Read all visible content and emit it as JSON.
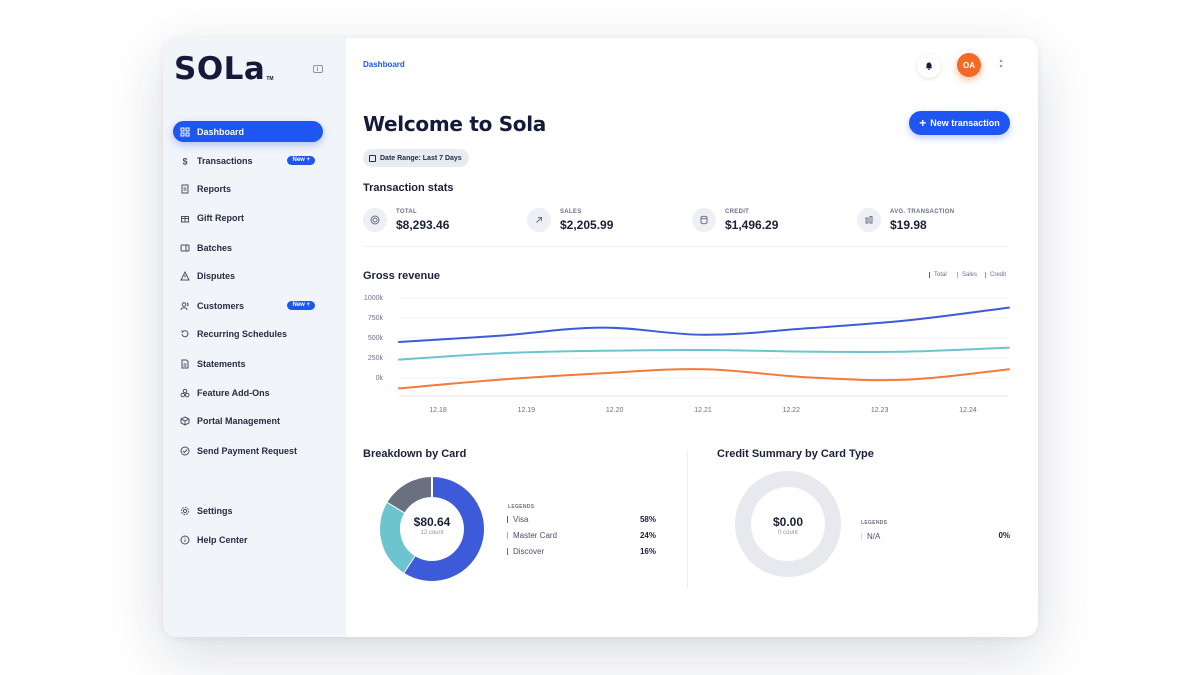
{
  "app": {
    "logo": "SOLa",
    "logo_tm": "TM"
  },
  "sidebar": {
    "items": [
      {
        "label": "Dashboard",
        "icon": "grid-icon",
        "active": true
      },
      {
        "label": "Transactions",
        "icon": "dollar-icon",
        "badge": "New +"
      },
      {
        "label": "Reports",
        "icon": "report-icon"
      },
      {
        "label": "Gift Report",
        "icon": "gift-icon"
      },
      {
        "label": "Batches",
        "icon": "batch-icon"
      },
      {
        "label": "Disputes",
        "icon": "warning-icon"
      },
      {
        "label": "Customers",
        "icon": "users-icon",
        "badge": "New +"
      },
      {
        "label": "Recurring Schedules",
        "icon": "recurring-icon"
      },
      {
        "label": "Statements",
        "icon": "statement-icon"
      },
      {
        "label": "Feature Add-Ons",
        "icon": "addons-icon"
      },
      {
        "label": "Portal Management",
        "icon": "portal-icon"
      },
      {
        "label": "Send Payment Request",
        "icon": "send-icon"
      }
    ],
    "bottom": [
      {
        "label": "Settings",
        "icon": "gear-icon"
      },
      {
        "label": "Help Center",
        "icon": "help-icon"
      }
    ]
  },
  "header": {
    "breadcrumb": "Dashboard",
    "avatar_initials": "OA"
  },
  "main": {
    "title": "Welcome to Sola",
    "new_transaction": "New transaction",
    "date_range": "Date Range: Last 7 Days",
    "stats_title": "Transaction stats",
    "stats": [
      {
        "label": "TOTAL",
        "value": "$8,293.46",
        "icon": "target-icon"
      },
      {
        "label": "SALES",
        "value": "$2,205.99",
        "icon": "arrow-up-right-icon"
      },
      {
        "label": "CREDIT",
        "value": "$1,496.29",
        "icon": "database-icon"
      },
      {
        "label": "AVG. TRANSACTION",
        "value": "$19.98",
        "icon": "bars-icon"
      }
    ],
    "revenue_title": "Gross revenue",
    "breakdown_title": "Breakdown by Card",
    "credit_title": "Credit Summary by Card Type"
  },
  "colors": {
    "accent": "#1f55f0",
    "total": "#3d5bd9",
    "sales": "#6cc4cf",
    "credit": "#f27a3a",
    "discover": "#6b7080",
    "avatar": "#f36a24"
  },
  "chart_data": [
    {
      "type": "line",
      "title": "Gross revenue",
      "categories": [
        "12.18",
        "12.19",
        "12.20",
        "12.21",
        "12.22",
        "12.23",
        "12.24"
      ],
      "yticks": [
        "1000k",
        "750k",
        "500k",
        "250k",
        "0k"
      ],
      "ylim": [
        -150,
        1000
      ],
      "series": [
        {
          "name": "Total",
          "color": "#3d5bd9",
          "values": [
            450,
            530,
            630,
            540,
            620,
            720,
            880
          ]
        },
        {
          "name": "Sales",
          "color": "#6cc4cf",
          "values": [
            230,
            310,
            340,
            350,
            330,
            330,
            380
          ]
        },
        {
          "name": "Credit",
          "color": "#f27a3a",
          "values": [
            -130,
            -20,
            60,
            110,
            10,
            -20,
            110
          ]
        }
      ],
      "grid": true,
      "legend_position": "top-right"
    },
    {
      "type": "pie",
      "title": "Breakdown by Card",
      "center_value": "$80.64",
      "center_label": "12 count",
      "legend_heading": "LEGENDS",
      "slices": [
        {
          "label": "Visa",
          "value": 58,
          "pct": "58%",
          "color": "#3d5bd9"
        },
        {
          "label": "Master Card",
          "value": 24,
          "pct": "24%",
          "color": "#6cc4cf"
        },
        {
          "label": "Discover",
          "value": 16,
          "pct": "16%",
          "color": "#6b7080"
        }
      ]
    },
    {
      "type": "pie",
      "title": "Credit Summary by Card Type",
      "center_value": "$0.00",
      "center_label": "0 count",
      "legend_heading": "LEGENDS",
      "slices": [
        {
          "label": "N/A",
          "value": 0,
          "pct": "0%",
          "color": "#d6d9e0"
        }
      ]
    }
  ]
}
